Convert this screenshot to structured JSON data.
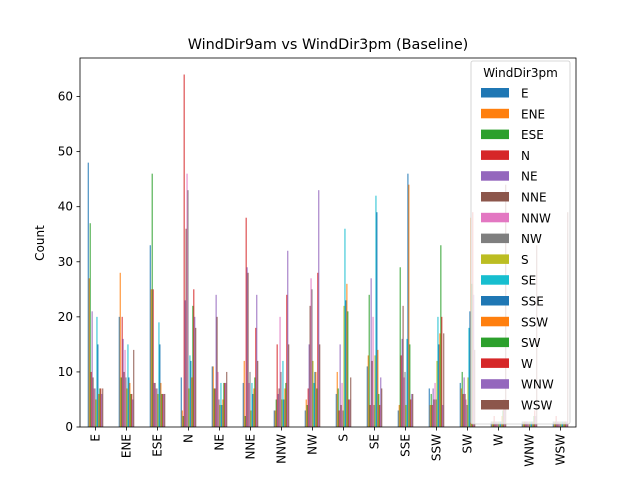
{
  "chart_data": {
    "type": "bar",
    "title": "WindDir9am vs WindDir3pm (Baseline)",
    "xlabel": "",
    "ylabel": "Count",
    "ylim": [
      0,
      67
    ],
    "yticks": [
      0,
      10,
      20,
      30,
      40,
      50,
      60
    ],
    "categories": [
      "E",
      "ENE",
      "ESE",
      "N",
      "NE",
      "NNE",
      "NNW",
      "NW",
      "S",
      "SE",
      "SSE",
      "SSW",
      "SW",
      "W",
      "WNW",
      "WSW"
    ],
    "legend": {
      "title": "WindDir3pm",
      "placement": "top-right"
    },
    "grid": false,
    "series": [
      {
        "name": "E",
        "color": "#1f77b4",
        "values": [
          48,
          20,
          33,
          9,
          11,
          8,
          3,
          3,
          6,
          11,
          3,
          7,
          8,
          1,
          1,
          1
        ]
      },
      {
        "name": "ENE",
        "color": "#ff7f0e",
        "values": [
          27,
          28,
          25,
          3,
          11,
          12,
          3,
          5,
          10,
          13,
          4,
          4,
          7,
          1,
          1,
          1
        ]
      },
      {
        "name": "ESE",
        "color": "#2ca02c",
        "values": [
          37,
          9,
          46,
          2,
          7,
          2,
          5,
          4,
          7,
          24,
          29,
          6,
          10,
          1,
          1,
          1
        ]
      },
      {
        "name": "N",
        "color": "#d62728",
        "values": [
          10,
          20,
          25,
          64,
          7,
          38,
          15,
          7,
          3,
          4,
          13,
          4,
          6,
          2,
          1,
          2
        ]
      },
      {
        "name": "NE",
        "color": "#9467bd",
        "values": [
          21,
          16,
          8,
          23,
          24,
          29,
          6,
          15,
          15,
          27,
          16,
          7,
          9,
          1,
          1,
          1
        ]
      },
      {
        "name": "NNE",
        "color": "#8c564b",
        "values": [
          9,
          10,
          8,
          36,
          20,
          28,
          7,
          22,
          4,
          12,
          22,
          5,
          6,
          1,
          1,
          1
        ]
      },
      {
        "name": "NNW",
        "color": "#e377c2",
        "values": [
          7,
          14,
          7,
          46,
          10,
          8,
          20,
          27,
          8,
          20,
          9,
          8,
          5,
          1,
          1,
          1
        ]
      },
      {
        "name": "NW",
        "color": "#7f7f7f",
        "values": [
          7,
          9,
          7,
          43,
          5,
          10,
          10,
          25,
          3,
          4,
          10,
          5,
          4,
          1,
          1,
          1
        ]
      },
      {
        "name": "S",
        "color": "#bcbd22",
        "values": [
          5,
          7,
          6,
          7,
          4,
          3,
          5,
          12,
          22,
          13,
          4,
          12,
          9,
          1,
          1,
          1
        ]
      },
      {
        "name": "SE",
        "color": "#17becf",
        "values": [
          20,
          15,
          19,
          13,
          8,
          8,
          12,
          8,
          36,
          42,
          16,
          20,
          18,
          1,
          1,
          1
        ]
      },
      {
        "name": "SSE",
        "color": "#1f77b4",
        "values": [
          15,
          9,
          15,
          12,
          4,
          6,
          5,
          10,
          23,
          39,
          46,
          15,
          21,
          1,
          1,
          1
        ]
      },
      {
        "name": "SSW",
        "color": "#ff7f0e",
        "values": [
          6,
          8,
          8,
          9,
          5,
          7,
          7,
          10,
          26,
          14,
          44,
          17,
          38,
          2,
          1,
          1
        ]
      },
      {
        "name": "SW",
        "color": "#2ca02c",
        "values": [
          7,
          6,
          6,
          22,
          8,
          9,
          8,
          7,
          21,
          6,
          15,
          33,
          26,
          3,
          2,
          1
        ]
      },
      {
        "name": "W",
        "color": "#d62728",
        "values": [
          7,
          6,
          6,
          25,
          8,
          18,
          24,
          28,
          5,
          4,
          5,
          20,
          39,
          5,
          3,
          1
        ]
      },
      {
        "name": "WNW",
        "color": "#9467bd",
        "values": [
          6,
          5,
          6,
          20,
          8,
          24,
          32,
          43,
          5,
          9,
          6,
          4,
          24,
          5,
          2,
          1
        ]
      },
      {
        "name": "WSW",
        "color": "#8c564b",
        "values": [
          7,
          14,
          6,
          18,
          10,
          12,
          15,
          15,
          9,
          7,
          6,
          17,
          14,
          44,
          33,
          39
        ]
      }
    ]
  }
}
